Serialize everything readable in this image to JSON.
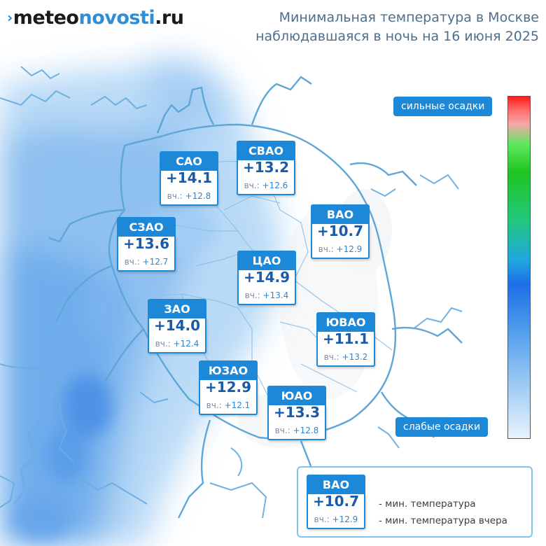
{
  "logo": {
    "prefix": "›",
    "part1": "meteo",
    "part2": "novosti",
    "part3": ".ru"
  },
  "title": {
    "line1": "Минимальная температура в Москве",
    "line2": "наблюдавшаяся в ночь на 16 июня 2025"
  },
  "yesterday_label": "вч.:",
  "districts": [
    {
      "name": "САО",
      "temp": "+14.1",
      "yesterday": "+12.8"
    },
    {
      "name": "СВАО",
      "temp": "+13.2",
      "yesterday": "+12.6"
    },
    {
      "name": "ВАО",
      "temp": "+10.7",
      "yesterday": "+12.9"
    },
    {
      "name": "СЗАО",
      "temp": "+13.6",
      "yesterday": "+12.7"
    },
    {
      "name": "ЦАО",
      "temp": "+14.9",
      "yesterday": "+13.4"
    },
    {
      "name": "ЗАО",
      "temp": "+14.0",
      "yesterday": "+12.4"
    },
    {
      "name": "ЮВАО",
      "temp": "+11.1",
      "yesterday": "+13.2"
    },
    {
      "name": "ЮЗАО",
      "temp": "+12.9",
      "yesterday": "+12.1"
    },
    {
      "name": "ЮАО",
      "temp": "+13.3",
      "yesterday": "+12.8"
    }
  ],
  "scale": {
    "top_label": "сильные осадки",
    "bottom_label": "слабые осадки"
  },
  "legend": {
    "sample_name": "ВАО",
    "sample_temp": "+10.7",
    "sample_yesterday": "+12.9",
    "line1": "- мин. температура",
    "line2": "- мин. температура вчера"
  },
  "colors": {
    "accent": "#1e88d8",
    "temperature_text": "#1a5aa6",
    "title_text": "#4e6e8c",
    "border_lines": "#5fa6d8",
    "precip_heavy": "#ff1a1a",
    "precip_mid": "#1fc61f",
    "precip_light": "#e7f2fc"
  }
}
